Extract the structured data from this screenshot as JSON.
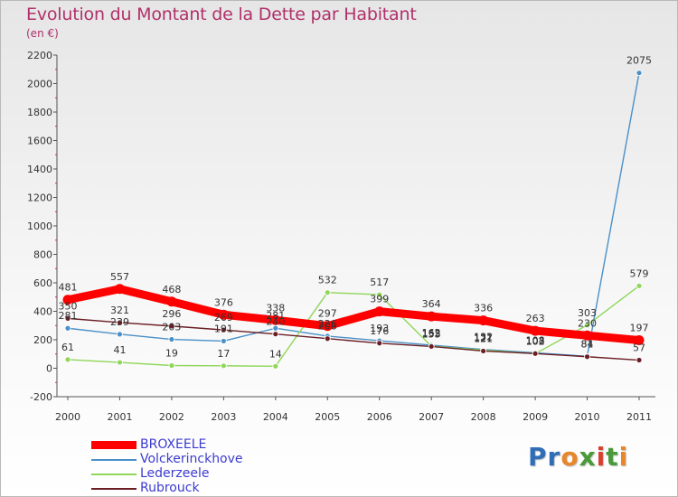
{
  "title": "Evolution du Montant de la Dette par Habitant",
  "subtitle": "(en €)",
  "logo": {
    "text": "Proxiti",
    "letters": [
      {
        "char": "P",
        "color": "#2f6db6"
      },
      {
        "char": "r",
        "color": "#2f6db6"
      },
      {
        "char": "o",
        "color": "#e8862a"
      },
      {
        "char": "x",
        "color": "#4a9a3a"
      },
      {
        "char": "i",
        "color": "#d94030"
      },
      {
        "char": "t",
        "color": "#4a9a3a"
      },
      {
        "char": "i",
        "color": "#e8862a"
      }
    ]
  },
  "chart_data": {
    "type": "line",
    "title": "Evolution du Montant de la Dette par Habitant",
    "subtitle": "(en €)",
    "x": [
      "2000",
      "2001",
      "2002",
      "2003",
      "2004",
      "2005",
      "2006",
      "2007",
      "2008",
      "2009",
      "2010",
      "2011"
    ],
    "ylim": [
      -200,
      2200
    ],
    "yticks": [
      -200,
      0,
      200,
      400,
      600,
      800,
      1000,
      1200,
      1400,
      1600,
      1800,
      2000,
      2200
    ],
    "grid": false,
    "legend_position": "bottom-left",
    "series": [
      {
        "name": "BROXEELE",
        "color": "#ff0000",
        "weight": "thick",
        "values": [
          481,
          557,
          468,
          376,
          338,
          297,
          399,
          364,
          336,
          263,
          230,
          197
        ]
      },
      {
        "name": "Volckerinckhove",
        "color": "#4a90c8",
        "weight": "thin",
        "values": [
          281,
          239,
          203,
          191,
          281,
          226,
          193,
          162,
          132,
          108,
          84,
          2075
        ]
      },
      {
        "name": "Lederzeele",
        "color": "#8fd65a",
        "weight": "thin",
        "values": [
          61,
          41,
          19,
          17,
          14,
          532,
          517,
          155,
          127,
          102,
          303,
          579
        ]
      },
      {
        "name": "Rubrouck",
        "color": "#6b1f25",
        "weight": "thin",
        "values": [
          350,
          321,
          296,
          269,
          240,
          208,
          176,
          153,
          121,
          103,
          81,
          57
        ]
      }
    ]
  }
}
